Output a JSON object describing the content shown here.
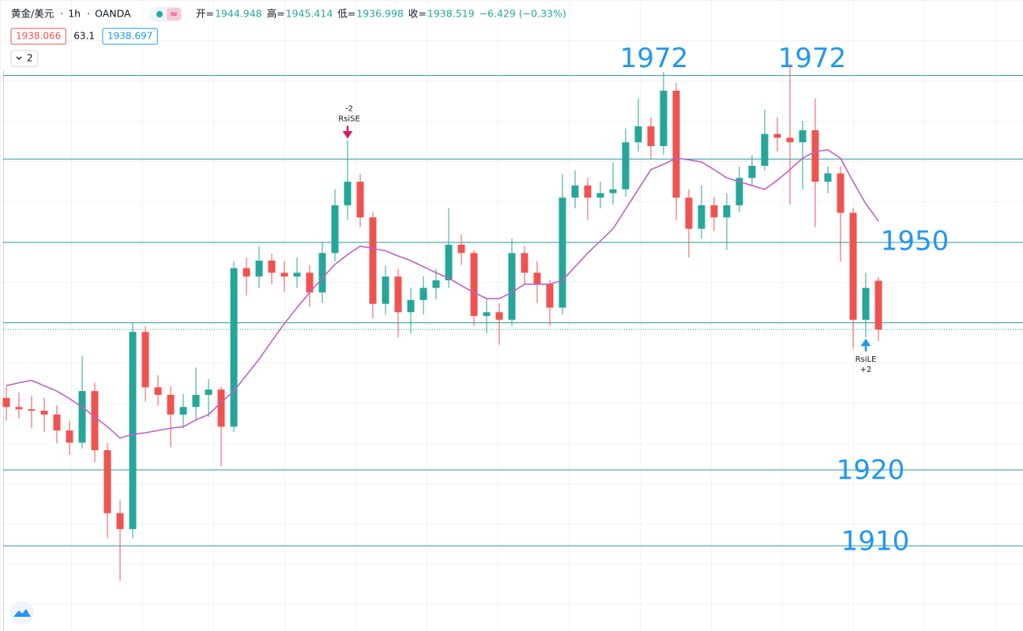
{
  "header": {
    "symbol": "黄金/美元",
    "interval": "1h",
    "source": "OANDA",
    "open_label": "开=",
    "high_label": "高=",
    "low_label": "低=",
    "close_label": "收=",
    "change": "−6.429 (−0.33%)",
    "bid": "1938.066",
    "spread": "63.1",
    "ask": "1938.697",
    "indicator_count": "2"
  },
  "chart_data": {
    "type": "candlestick",
    "open": [
      1929.5,
      1928.3,
      1928.0,
      1927.8,
      1927.3,
      1925.2,
      1923.6,
      1930.4,
      1922.6,
      1914.3,
      1912.2,
      1938.2,
      1930.9,
      1929.9,
      1927.3,
      1928.3,
      1929.9,
      1930.6,
      1925.7,
      1946.6,
      1945.5,
      1947.6,
      1946.0,
      1945.5,
      1946.0,
      1943.4,
      1948.6,
      1954.9,
      1958.0,
      1953.3,
      1941.9,
      1945.5,
      1940.8,
      1942.4,
      1944.0,
      1945.0,
      1949.7,
      1948.6,
      1940.3,
      1940.8,
      1939.8,
      1948.6,
      1946.0,
      1944.5,
      1941.4,
      1955.9,
      1957.5,
      1955.9,
      1956.5,
      1957.0,
      1963.2,
      1965.3,
      1962.7,
      1970.0,
      1955.9,
      1951.8,
      1954.9,
      1953.3,
      1954.9,
      1958.5,
      1960.1,
      1964.3,
      1963.8,
      1963.2,
      1964.8,
      1958.0,
      1959.1,
      1953.9,
      1939.8,
      1944.948
    ],
    "high": [
      1931.0,
      1930.2,
      1929.8,
      1929.5,
      1928.5,
      1926.5,
      1935.0,
      1931.5,
      1923.5,
      1916.0,
      1939.5,
      1939.0,
      1932.5,
      1931.0,
      1930.0,
      1933.5,
      1932.0,
      1931.0,
      1947.5,
      1948.0,
      1949.5,
      1948.5,
      1947.5,
      1948.0,
      1947.0,
      1950.0,
      1957.0,
      1963.5,
      1959.0,
      1954.0,
      1947.0,
      1946.5,
      1944.0,
      1945.5,
      1946.5,
      1954.5,
      1951.0,
      1949.0,
      1942.5,
      1942.0,
      1950.5,
      1949.5,
      1947.5,
      1945.0,
      1959.0,
      1959.5,
      1958.5,
      1958.0,
      1960.5,
      1965.0,
      1969.0,
      1966.5,
      1972.5,
      1971.0,
      1957.0,
      1957.5,
      1956.0,
      1956.5,
      1960.0,
      1961.5,
      1967.5,
      1966.5,
      1973.5,
      1966.0,
      1969.0,
      1960.0,
      1960.0,
      1954.5,
      1946.0,
      1945.414
    ],
    "low": [
      1926.5,
      1926.8,
      1925.5,
      1925.0,
      1923.5,
      1922.0,
      1922.8,
      1921.0,
      1911.0,
      1905.4,
      1911.0,
      1929.0,
      1928.5,
      1923.0,
      1925.5,
      1926.5,
      1927.0,
      1920.5,
      1925.0,
      1943.0,
      1944.0,
      1944.5,
      1943.5,
      1944.0,
      1941.5,
      1942.0,
      1947.5,
      1953.0,
      1952.0,
      1940.0,
      1940.5,
      1937.5,
      1938.0,
      1940.5,
      1942.5,
      1944.0,
      1947.0,
      1939.0,
      1938.0,
      1936.5,
      1939.0,
      1944.5,
      1942.0,
      1939.0,
      1940.5,
      1954.5,
      1953.0,
      1954.5,
      1955.0,
      1956.0,
      1962.0,
      1961.0,
      1961.5,
      1953.0,
      1948.0,
      1950.5,
      1951.5,
      1949.0,
      1954.0,
      1957.5,
      1959.5,
      1962.0,
      1955.0,
      1957.0,
      1952.0,
      1956.5,
      1947.5,
      1936.0,
      1937.5,
      1936.998
    ],
    "close": [
      1928.3,
      1928.0,
      1927.8,
      1927.3,
      1925.2,
      1923.6,
      1930.4,
      1922.6,
      1914.3,
      1912.2,
      1938.2,
      1930.9,
      1929.9,
      1927.3,
      1928.3,
      1929.9,
      1930.6,
      1925.7,
      1946.6,
      1945.5,
      1947.6,
      1946.0,
      1945.5,
      1946.0,
      1943.4,
      1948.6,
      1954.9,
      1958.0,
      1953.3,
      1941.9,
      1945.5,
      1940.8,
      1942.4,
      1944.0,
      1945.0,
      1949.7,
      1948.6,
      1940.3,
      1940.8,
      1939.8,
      1948.6,
      1946.0,
      1944.5,
      1941.4,
      1955.9,
      1957.5,
      1955.9,
      1956.5,
      1957.0,
      1963.2,
      1965.3,
      1962.7,
      1970.0,
      1955.9,
      1951.8,
      1954.9,
      1953.3,
      1954.9,
      1958.5,
      1960.1,
      1964.3,
      1963.8,
      1963.2,
      1964.8,
      1958.0,
      1959.1,
      1953.9,
      1939.8,
      1944.0,
      1938.519
    ],
    "ma_values": [
      1931.1,
      1931.5,
      1931.8,
      1931.1,
      1930.4,
      1929.4,
      1928.3,
      1927.0,
      1925.7,
      1924.2,
      1924.7,
      1924.9,
      1925.2,
      1925.5,
      1925.7,
      1926.6,
      1927.3,
      1928.9,
      1930.4,
      1932.5,
      1934.6,
      1937.0,
      1939.3,
      1941.4,
      1943.4,
      1945.3,
      1947.1,
      1948.4,
      1949.5,
      1949.2,
      1948.9,
      1948.2,
      1947.6,
      1946.8,
      1946.0,
      1945.3,
      1944.3,
      1943.4,
      1942.6,
      1942.6,
      1943.4,
      1944.5,
      1944.5,
      1944.5,
      1945.0,
      1946.8,
      1948.6,
      1950.2,
      1951.8,
      1954.4,
      1957.0,
      1959.6,
      1960.3,
      1961.1,
      1960.9,
      1960.6,
      1959.6,
      1958.5,
      1958.0,
      1957.5,
      1957.0,
      1958.2,
      1959.6,
      1961.1,
      1962.0,
      1962.2,
      1961.1,
      1958.0,
      1955.1,
      1952.8
    ],
    "ma_color": "#c060c8",
    "up_color": "#26a69a",
    "down_color": "#ef5350",
    "levels": [
      1972,
      1961,
      1950,
      1939.4,
      1920,
      1910
    ],
    "level_color": "#2a98a4",
    "level_label_color": "#2196f3",
    "short_signal": {
      "qty": "-2",
      "name": "RsiSE",
      "color": "#d81b60"
    },
    "long_signal": {
      "name": "RsiLE",
      "qty": "+2",
      "color": "#2196f3"
    },
    "ylim": [
      1899.7,
      1972.8
    ]
  }
}
